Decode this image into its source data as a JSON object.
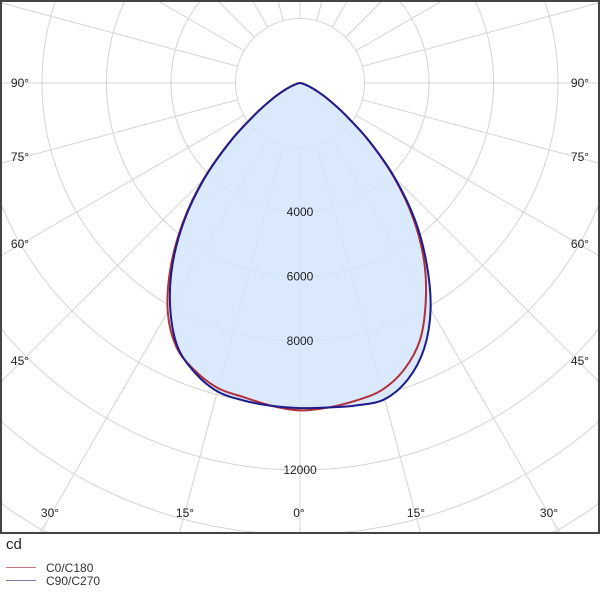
{
  "chart_data": {
    "type": "polar",
    "unit": "cd",
    "radial_ticks": [
      2000,
      4000,
      6000,
      8000,
      10000,
      12000,
      14000,
      16000
    ],
    "radial_tick_labels": [
      "4000",
      "6000",
      "8000",
      "12000"
    ],
    "radial_label_values": [
      4000,
      6000,
      8000,
      12000
    ],
    "angle_labels_left": [
      "90°",
      "75°",
      "60°",
      "45°",
      "30°",
      "15°"
    ],
    "angle_labels_right": [
      "90°",
      "75°",
      "60°",
      "45°",
      "30°",
      "15°"
    ],
    "angle_label_center": "0°",
    "angles": [
      0,
      5,
      10,
      15,
      20,
      25,
      30,
      35,
      40,
      45,
      50,
      55,
      60,
      65,
      70,
      75,
      80,
      85,
      90
    ],
    "series": [
      {
        "name": "C0/C180",
        "color": "#b0303c",
        "right": [
          10150,
          10100,
          10000,
          9850,
          9450,
          8800,
          7800,
          6700,
          5450,
          4100,
          2780,
          1700,
          1000,
          550,
          280,
          120,
          50,
          15,
          0
        ],
        "left": [
          10150,
          10050,
          9900,
          9800,
          9500,
          9050,
          8200,
          7000,
          5650,
          4250,
          2850,
          1720,
          1000,
          550,
          280,
          120,
          50,
          15,
          0
        ]
      },
      {
        "name": "C90/C270",
        "color": "#1c1c8c",
        "right": [
          10080,
          10100,
          10150,
          10150,
          9780,
          9100,
          8100,
          6850,
          5550,
          4150,
          2800,
          1700,
          1000,
          550,
          280,
          120,
          50,
          15,
          0
        ],
        "left": [
          10080,
          10050,
          10000,
          9900,
          9550,
          9000,
          8050,
          6900,
          5600,
          4200,
          2820,
          1700,
          1000,
          550,
          280,
          120,
          50,
          15,
          0
        ]
      }
    ],
    "fill_color": "#d4e5fa",
    "grid": true,
    "legend_placement": "bottom-left"
  }
}
